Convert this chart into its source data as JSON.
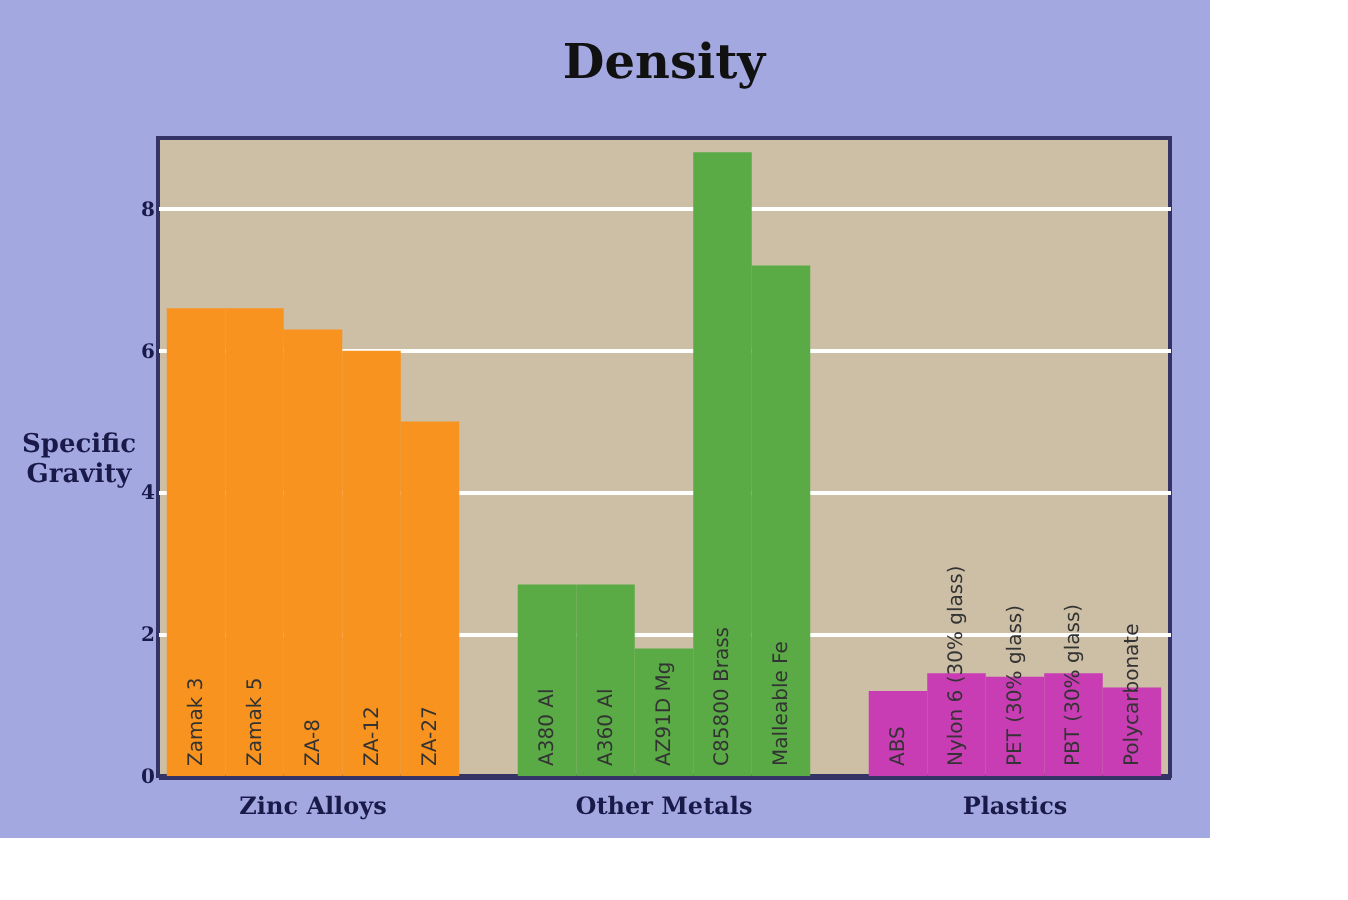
{
  "chart_data": {
    "type": "bar",
    "title": "Density",
    "ylabel": "Specific Gravity",
    "categories": [
      "Zamak 3",
      "Zamak 5",
      "ZA-8",
      "ZA-12",
      "ZA-27",
      null,
      "A380 Al",
      "A360 Al",
      "AZ91D Mg",
      "C85800 Brass",
      "Malleable Fe",
      null,
      "ABS",
      "Nylon 6 (30% glass)",
      "PET (30% glass)",
      "PBT (30% glass)",
      "Polycarbonate"
    ],
    "series": [
      {
        "name": "Zinc Alloys",
        "color": "#f7931e",
        "values": [
          6.6,
          6.6,
          6.3,
          6.0,
          5.0,
          null,
          null,
          null,
          null,
          null,
          null,
          null,
          null,
          null,
          null,
          null,
          null
        ]
      },
      {
        "name": "Other Metals",
        "color": "#5aab46",
        "values": [
          null,
          null,
          null,
          null,
          null,
          null,
          2.7,
          2.7,
          1.8,
          8.8,
          7.2,
          null,
          null,
          null,
          null,
          null,
          null
        ]
      },
      {
        "name": "Plastics",
        "color": "#c83cb4",
        "values": [
          null,
          null,
          null,
          null,
          null,
          null,
          null,
          null,
          null,
          null,
          null,
          null,
          1.2,
          1.45,
          1.4,
          1.45,
          1.25
        ]
      }
    ],
    "ylim": [
      0,
      9
    ],
    "yticks": [
      0,
      2,
      4,
      6,
      8
    ],
    "grid": "y",
    "legend": false
  }
}
